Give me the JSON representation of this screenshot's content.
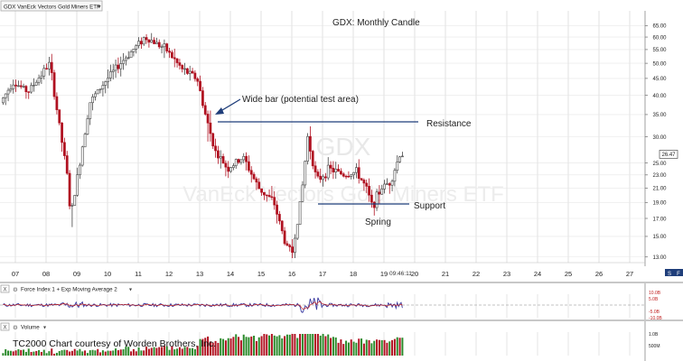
{
  "symbol_selector": {
    "label": "GDX VanEck Vectors Gold Miners ETF",
    "arrow": "▾"
  },
  "price_panel": {
    "watermark_symbol": "GDX",
    "watermark_name": "VanEck Vectors Gold Miners ETF",
    "timestamp": "09:46:11",
    "last_price_tag": "26.47",
    "scale_unit_tag": "S",
    "scale_unit_tag2": "F"
  },
  "annotations": {
    "title": "GDX:  Monthly Candle",
    "wide_bar": "Wide bar (potential test area)",
    "resistance": "Resistance",
    "support": "Support",
    "spring": "Spring"
  },
  "force_panel": {
    "close_button": "X",
    "settings_icon": "gear-icon",
    "label": "Force Index 1 + Exp Moving Average 2",
    "arrow": "▾",
    "ticks": [
      "10.0B",
      "5.0B",
      "0",
      "-5.0B",
      "-10.0B"
    ]
  },
  "volume_panel": {
    "close_button": "X",
    "settings_icon": "gear-icon",
    "label": "Volume",
    "arrow": "▾",
    "credit": "TC2000 Chart courtesy of Worden Brothers, Inc.",
    "ticks": [
      "1.0B",
      "500M"
    ]
  },
  "colors": {
    "up": "#444444",
    "down": "#b01020",
    "line": "#1f3e7a",
    "grid": "#d6d6d6",
    "force": "#3a3aa0",
    "force_avg": "#c02020"
  },
  "chart_data": {
    "type": "candlestick",
    "title": "GDX:  Monthly Candle",
    "x_tick_labels": [
      "07",
      "08",
      "09",
      "10",
      "11",
      "12",
      "13",
      "14",
      "15",
      "16",
      "17",
      "18",
      "19",
      "20",
      "21",
      "22",
      "23",
      "24",
      "25",
      "26",
      "27"
    ],
    "y_tick_labels": [
      "65.00",
      "60.00",
      "55.00",
      "50.00",
      "45.00",
      "40.00",
      "35.00",
      "30.00",
      "25.00",
      "23.00",
      "21.00",
      "19.00",
      "17.00",
      "15.00",
      "13.00"
    ],
    "y_tick_values": [
      65,
      60,
      55,
      50,
      45,
      40,
      35,
      30,
      25,
      23,
      21,
      19,
      17,
      15,
      13
    ],
    "y_scale": "log",
    "ylim": [
      12.5,
      72
    ],
    "xlim": [
      2006.5,
      2027.5
    ],
    "grid": true,
    "key_points": [
      {
        "t": 2006.6,
        "p": 38
      },
      {
        "t": 2007.0,
        "p": 44
      },
      {
        "t": 2007.5,
        "p": 41
      },
      {
        "t": 2008.2,
        "p": 50
      },
      {
        "t": 2008.8,
        "p": 22
      },
      {
        "t": 2008.88,
        "p": 17
      },
      {
        "t": 2009.5,
        "p": 38
      },
      {
        "t": 2010.0,
        "p": 44
      },
      {
        "t": 2010.5,
        "p": 50
      },
      {
        "t": 2011.0,
        "p": 56
      },
      {
        "t": 2011.3,
        "p": 60
      },
      {
        "t": 2011.6,
        "p": 58
      },
      {
        "t": 2012.0,
        "p": 55
      },
      {
        "t": 2012.5,
        "p": 48
      },
      {
        "t": 2013.0,
        "p": 45
      },
      {
        "t": 2013.3,
        "p": 34
      },
      {
        "t": 2013.6,
        "p": 27
      },
      {
        "t": 2014.0,
        "p": 24
      },
      {
        "t": 2014.5,
        "p": 26
      },
      {
        "t": 2015.0,
        "p": 21
      },
      {
        "t": 2015.5,
        "p": 19
      },
      {
        "t": 2015.9,
        "p": 14
      },
      {
        "t": 2016.1,
        "p": 13.5
      },
      {
        "t": 2016.4,
        "p": 20
      },
      {
        "t": 2016.6,
        "p": 30
      },
      {
        "t": 2016.9,
        "p": 22
      },
      {
        "t": 2017.3,
        "p": 24
      },
      {
        "t": 2017.8,
        "p": 23
      },
      {
        "t": 2018.2,
        "p": 23.5
      },
      {
        "t": 2018.5,
        "p": 21
      },
      {
        "t": 2018.7,
        "p": 18.5
      },
      {
        "t": 2019.0,
        "p": 21
      },
      {
        "t": 2019.3,
        "p": 22
      },
      {
        "t": 2019.6,
        "p": 26.5
      }
    ],
    "resistance": {
      "value": 31.5,
      "from": 2013.3,
      "to": 2019.9
    },
    "support": {
      "value": 19.1,
      "from": 2016.8,
      "to": 2019.9
    },
    "spring_low": {
      "t": 2018.75,
      "value": 17.9
    },
    "wide_bar_month": {
      "t": 2013.3,
      "high": 36,
      "low": 29
    },
    "last_price": 26.47
  }
}
